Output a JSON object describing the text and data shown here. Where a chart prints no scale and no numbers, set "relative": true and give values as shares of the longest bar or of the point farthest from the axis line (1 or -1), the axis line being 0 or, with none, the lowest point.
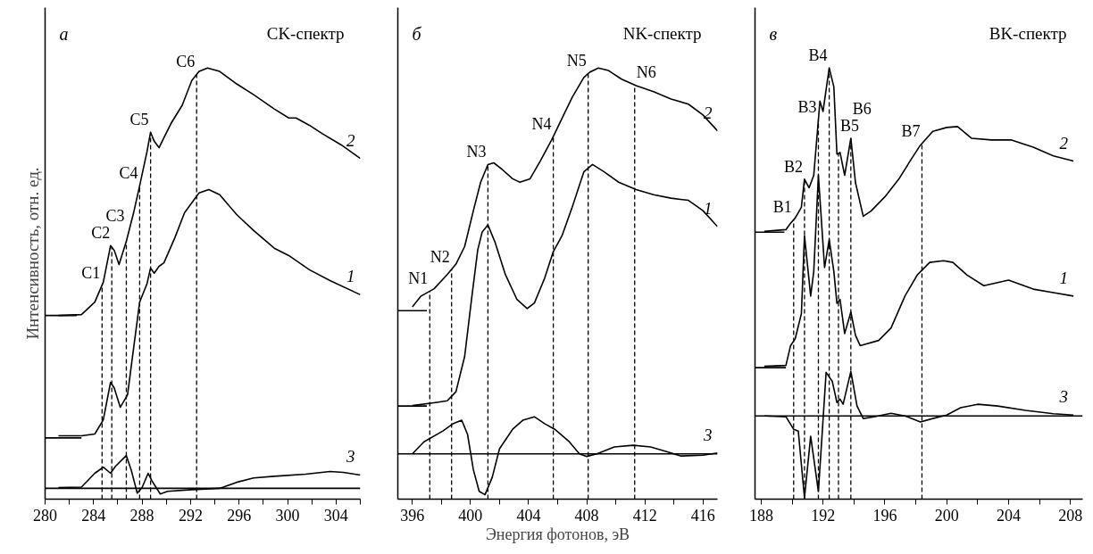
{
  "chart_data": [
    {
      "type": "line",
      "relative": true,
      "title": "CK-спектр",
      "ylabel": "Интенсивность, отн. ед.",
      "annotations": [
        "а"
      ],
      "xlim": [
        280,
        306
      ],
      "xticks": [
        280,
        {
          "value": 282,
          "label": null
        },
        284,
        {
          "value": 286,
          "label": null
        },
        288,
        {
          "value": 290,
          "label": null
        },
        292,
        {
          "value": 294,
          "label": null
        },
        296,
        {
          "value": 298,
          "label": null
        },
        300,
        {
          "value": 302,
          "label": null
        },
        304,
        {
          "value": 306,
          "label": null
        }
      ],
      "series": [
        {
          "name": "2",
          "color": "#000000",
          "x": [
            281.1,
            283.0,
            284.1,
            284.8,
            285.4,
            285.7,
            286.1,
            286.7,
            287.3,
            287.8,
            288.4,
            288.7,
            289.0,
            289.4,
            289.8,
            290.4,
            291.3,
            292.1,
            292.7,
            293.4,
            294.4,
            295.8,
            297.2,
            298.9,
            300.1,
            300.7,
            301.8,
            302.9,
            304.4,
            306.0
          ],
          "values": [
            0.426,
            0.428,
            0.457,
            0.503,
            0.588,
            0.577,
            0.544,
            0.598,
            0.664,
            0.727,
            0.805,
            0.851,
            0.83,
            0.815,
            0.838,
            0.872,
            0.913,
            0.971,
            0.992,
            1.0,
            0.992,
            0.963,
            0.938,
            0.905,
            0.884,
            0.884,
            0.867,
            0.847,
            0.822,
            0.79
          ]
        },
        {
          "name": "1",
          "color": "#000000",
          "x": [
            281.1,
            283.0,
            284.1,
            284.8,
            285.4,
            285.7,
            286.2,
            286.8,
            287.3,
            287.8,
            288.4,
            288.7,
            289.0,
            289.4,
            289.8,
            290.7,
            291.5,
            292.7,
            293.5,
            294.4,
            295.8,
            297.2,
            298.9,
            300.1,
            301.8,
            303.5,
            306.0
          ],
          "values": [
            0.147,
            0.147,
            0.151,
            0.184,
            0.271,
            0.258,
            0.213,
            0.242,
            0.35,
            0.457,
            0.499,
            0.536,
            0.524,
            0.54,
            0.548,
            0.606,
            0.664,
            0.71,
            0.718,
            0.706,
            0.66,
            0.623,
            0.582,
            0.565,
            0.532,
            0.507,
            0.474
          ]
        },
        {
          "name": "3",
          "color": "#000000",
          "x": [
            281.1,
            283.0,
            284.1,
            284.8,
            285.4,
            285.8,
            286.7,
            287.1,
            287.6,
            288.0,
            288.5,
            288.8,
            289.5,
            290.1,
            292.1,
            294.4,
            295.8,
            297.2,
            298.9,
            301.5,
            303.5,
            304.6,
            306.0
          ],
          "values": [
            0.027,
            0.028,
            0.06,
            0.074,
            0.06,
            0.076,
            0.101,
            0.068,
            0.014,
            0.027,
            0.06,
            0.043,
            0.012,
            0.018,
            0.022,
            0.025,
            0.039,
            0.049,
            0.053,
            0.058,
            0.064,
            0.062,
            0.056
          ]
        },
        {
          "color": "#000000",
          "x": [
            280,
            282.6
          ],
          "values": [
            0.426,
            0.426
          ]
        },
        {
          "color": "#000000",
          "x": [
            280,
            283.0
          ],
          "values": [
            0.142,
            0.142
          ]
        },
        {
          "color": "#000000",
          "x": [
            280,
            306
          ],
          "values": [
            0.025,
            0.025
          ]
        }
      ],
      "ref_lines": [
        {
          "axis": "x",
          "value": 284.7,
          "label": "C1",
          "line_style": "dashed"
        },
        {
          "axis": "x",
          "value": 285.5,
          "label": "C2",
          "line_style": "dashed"
        },
        {
          "axis": "x",
          "value": 286.7,
          "label": "C3",
          "line_style": "dashed"
        },
        {
          "axis": "x",
          "value": 287.8,
          "label": "C4",
          "line_style": "dashed"
        },
        {
          "axis": "x",
          "value": 288.7,
          "label": "C5",
          "line_style": "dashed"
        },
        {
          "axis": "x",
          "value": 292.5,
          "label": "C6",
          "line_style": "dashed"
        }
      ]
    },
    {
      "type": "line",
      "relative": true,
      "title": "NK-спектр",
      "xlabel": "Энергия фотонов, эВ",
      "annotations": [
        "б"
      ],
      "xlim": [
        395,
        417
      ],
      "xticks": [
        396,
        {
          "value": 398,
          "label": null
        },
        400,
        {
          "value": 402,
          "label": null
        },
        404,
        {
          "value": 406,
          "label": null
        },
        408,
        {
          "value": 410,
          "label": null
        },
        412,
        {
          "value": 414,
          "label": null
        },
        416
      ],
      "series": [
        {
          "name": "2",
          "color": "#000000",
          "x": [
            396.0,
            396.6,
            397.5,
            398.4,
            399.0,
            399.6,
            400.2,
            400.7,
            401.2,
            401.6,
            402.2,
            402.9,
            403.4,
            404.1,
            404.8,
            405.6,
            406.3,
            407.0,
            407.8,
            408.2,
            408.8,
            409.5,
            410.4,
            411.4,
            412.6,
            413.8,
            415.0,
            416.0,
            417.0
          ],
          "values": [
            0.446,
            0.471,
            0.488,
            0.521,
            0.545,
            0.586,
            0.669,
            0.735,
            0.776,
            0.78,
            0.764,
            0.743,
            0.735,
            0.743,
            0.784,
            0.834,
            0.883,
            0.932,
            0.978,
            0.99,
            1.0,
            0.994,
            0.974,
            0.959,
            0.945,
            0.928,
            0.916,
            0.891,
            0.854
          ]
        },
        {
          "name": "1",
          "color": "#000000",
          "x": [
            396.0,
            397.6,
            398.4,
            399.0,
            399.6,
            400.1,
            400.5,
            400.8,
            401.2,
            401.7,
            402.4,
            403.2,
            403.9,
            404.4,
            405.1,
            405.7,
            406.3,
            407.0,
            407.8,
            408.4,
            409.2,
            410.2,
            411.4,
            412.6,
            413.8,
            415.0,
            416.0,
            417.0
          ],
          "values": [
            0.217,
            0.224,
            0.228,
            0.249,
            0.331,
            0.471,
            0.578,
            0.619,
            0.636,
            0.595,
            0.521,
            0.463,
            0.442,
            0.455,
            0.512,
            0.574,
            0.611,
            0.677,
            0.759,
            0.776,
            0.759,
            0.735,
            0.718,
            0.706,
            0.698,
            0.693,
            0.669,
            0.632
          ]
        },
        {
          "name": "3",
          "color": "#000000",
          "x": [
            396.0,
            396.8,
            398.1,
            398.8,
            399.4,
            399.8,
            400.2,
            400.6,
            401.0,
            401.5,
            402.0,
            402.9,
            403.6,
            404.4,
            405.1,
            405.8,
            406.8,
            407.5,
            408.0,
            408.7,
            409.9,
            411.2,
            412.4,
            413.6,
            414.5,
            416.0,
            417.0
          ],
          "values": [
            0.105,
            0.133,
            0.158,
            0.175,
            0.183,
            0.15,
            0.068,
            0.018,
            0.01,
            0.051,
            0.117,
            0.162,
            0.183,
            0.191,
            0.175,
            0.162,
            0.133,
            0.105,
            0.099,
            0.105,
            0.121,
            0.125,
            0.121,
            0.109,
            0.1,
            0.102,
            0.107
          ]
        },
        {
          "color": "#000000",
          "x": [
            395,
            397.0
          ],
          "values": [
            0.437,
            0.437
          ]
        },
        {
          "color": "#000000",
          "x": [
            395,
            397.0
          ],
          "values": [
            0.216,
            0.216
          ]
        },
        {
          "color": "#000000",
          "x": [
            395,
            417
          ],
          "values": [
            0.105,
            0.105
          ]
        }
      ],
      "ref_lines": [
        {
          "axis": "x",
          "value": 397.2,
          "label": "N1",
          "line_style": "dashed"
        },
        {
          "axis": "x",
          "value": 398.7,
          "label": "N2",
          "line_style": "dashed"
        },
        {
          "axis": "x",
          "value": 401.2,
          "label": "N3",
          "line_style": "dashed"
        },
        {
          "axis": "x",
          "value": 405.7,
          "label": "N4",
          "line_style": "dashed"
        },
        {
          "axis": "x",
          "value": 408.1,
          "label": "N5",
          "line_style": "dashed"
        },
        {
          "axis": "x",
          "value": 411.3,
          "label": "N6",
          "line_style": "dashed"
        }
      ]
    },
    {
      "type": "line",
      "relative": true,
      "title": "BK-спектр",
      "annotations": [
        "в"
      ],
      "xlim": [
        187.6,
        208.8
      ],
      "xticks": [
        188,
        {
          "value": 190,
          "label": null
        },
        192,
        {
          "value": 194,
          "label": null
        },
        196,
        {
          "value": 198,
          "label": null
        },
        200,
        {
          "value": 202,
          "label": null
        },
        204,
        {
          "value": 206,
          "label": null
        },
        208
      ],
      "series": [
        {
          "name": "2",
          "color": "#000000",
          "x": [
            188.2,
            189.6,
            189.9,
            190.2,
            190.6,
            190.8,
            191.1,
            191.4,
            191.8,
            192.0,
            192.4,
            192.7,
            192.9,
            193.1,
            193.4,
            193.8,
            194.1,
            194.6,
            195.1,
            196.0,
            196.9,
            197.7,
            198.3,
            199.1,
            200.0,
            200.7,
            201.6,
            202.9,
            204.2,
            205.6,
            206.9,
            208.2
          ],
          "values": [
            0.621,
            0.625,
            0.64,
            0.652,
            0.677,
            0.742,
            0.722,
            0.751,
            0.923,
            0.899,
            1.0,
            0.956,
            0.8,
            0.804,
            0.751,
            0.837,
            0.734,
            0.656,
            0.668,
            0.701,
            0.742,
            0.788,
            0.821,
            0.853,
            0.862,
            0.864,
            0.837,
            0.833,
            0.833,
            0.816,
            0.796,
            0.784
          ]
        },
        {
          "name": "1",
          "color": "#000000",
          "x": [
            188.2,
            189.6,
            189.9,
            190.2,
            190.6,
            190.8,
            191.2,
            191.4,
            191.7,
            192.1,
            192.4,
            192.7,
            192.9,
            193.1,
            193.4,
            193.8,
            194.1,
            194.4,
            195.6,
            196.4,
            197.3,
            198.1,
            198.9,
            199.8,
            200.4,
            201.3,
            202.4,
            204.0,
            205.6,
            206.9,
            208.2
          ],
          "values": [
            0.308,
            0.31,
            0.356,
            0.372,
            0.43,
            0.611,
            0.471,
            0.528,
            0.751,
            0.537,
            0.602,
            0.528,
            0.454,
            0.463,
            0.384,
            0.434,
            0.38,
            0.356,
            0.368,
            0.397,
            0.471,
            0.52,
            0.549,
            0.553,
            0.549,
            0.52,
            0.495,
            0.508,
            0.487,
            0.479,
            0.471
          ]
        },
        {
          "name": "3",
          "color": "#000000",
          "x": [
            188.2,
            189.6,
            190.1,
            190.4,
            190.8,
            191.2,
            191.7,
            192.0,
            192.2,
            192.6,
            192.9,
            193.1,
            193.3,
            193.8,
            194.2,
            194.6,
            195.3,
            196.4,
            197.3,
            198.3,
            199.1,
            200.0,
            200.9,
            202.0,
            203.3,
            205.1,
            206.9,
            208.2
          ],
          "values": [
            0.193,
            0.191,
            0.162,
            0.158,
            0.003,
            0.146,
            0.018,
            0.183,
            0.294,
            0.273,
            0.224,
            0.232,
            0.22,
            0.296,
            0.216,
            0.187,
            0.191,
            0.199,
            0.193,
            0.179,
            0.187,
            0.195,
            0.212,
            0.22,
            0.216,
            0.206,
            0.198,
            0.195
          ]
        },
        {
          "color": "#000000",
          "x": [
            187.6,
            189.5
          ],
          "values": [
            0.619,
            0.619
          ]
        },
        {
          "color": "#000000",
          "x": [
            187.6,
            189.6
          ],
          "values": [
            0.305,
            0.305
          ]
        },
        {
          "color": "#000000",
          "x": [
            187.6,
            208.8
          ],
          "values": [
            0.193,
            0.193
          ]
        }
      ],
      "ref_lines": [
        {
          "axis": "x",
          "value": 190.1,
          "label": "B1",
          "line_style": "dashed"
        },
        {
          "axis": "x",
          "value": 190.8,
          "label": "B2",
          "line_style": "dashed"
        },
        {
          "axis": "x",
          "value": 191.7,
          "label": "B3",
          "line_style": "dashed"
        },
        {
          "axis": "x",
          "value": 192.4,
          "label": "B4",
          "line_style": "dashed"
        },
        {
          "axis": "x",
          "value": 193.0,
          "label": "B5",
          "line_style": "dashed"
        },
        {
          "axis": "x",
          "value": 193.8,
          "label": "B6",
          "line_style": "dashed"
        },
        {
          "axis": "x",
          "value": 198.4,
          "label": "B7",
          "line_style": "dashed"
        }
      ]
    }
  ]
}
